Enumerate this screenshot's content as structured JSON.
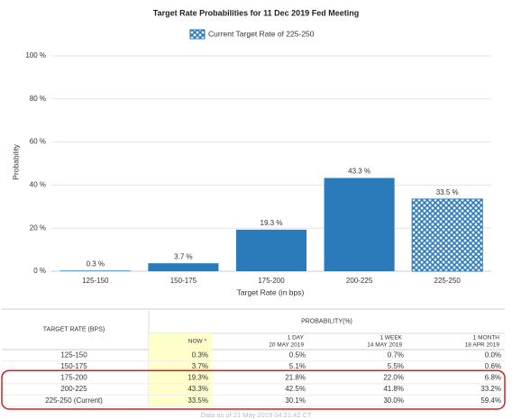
{
  "chart_data": {
    "type": "bar",
    "title": "Target Rate Probabilities for 11 Dec 2019 Fed Meeting",
    "legend": "Current Target Rate of 225-250",
    "ylabel": "Probability",
    "xlabel": "Target Rate (in bps)",
    "categories": [
      "125-150",
      "150-175",
      "175-200",
      "200-225",
      "225-250"
    ],
    "values": [
      0.3,
      3.7,
      19.3,
      43.3,
      33.5
    ],
    "value_labels": [
      "0.3 %",
      "3.7 %",
      "19.3 %",
      "43.3 %",
      "33.5 %"
    ],
    "hatched": [
      false,
      false,
      false,
      false,
      true
    ],
    "color": "#2b7bba",
    "grid": true,
    "ylim": [
      0,
      100
    ],
    "yticks": [
      {
        "value": 0,
        "label": "0 %"
      },
      {
        "value": 20,
        "label": "20 %"
      },
      {
        "value": 40,
        "label": "40 %"
      },
      {
        "value": 60,
        "label": "60 %"
      },
      {
        "value": 80,
        "label": "80 %"
      },
      {
        "value": 100,
        "label": "100 %"
      }
    ]
  },
  "table": {
    "corner": "TARGET RATE (BPS)",
    "group": "PROBABILITY(%)",
    "columns": [
      [
        "NOW *"
      ],
      [
        "1 DAY",
        "20 MAY 2019"
      ],
      [
        "1 WEEK",
        "14 MAY 2019"
      ],
      [
        "1 MONTH",
        "18 APR 2019"
      ]
    ],
    "rows": [
      [
        "125-150",
        "0.3%",
        "0.5%",
        "0.7%",
        "0.0%"
      ],
      [
        "150-175",
        "3.7%",
        "5.1%",
        "5.5%",
        "0.6%"
      ],
      [
        "175-200",
        "19.3%",
        "21.8%",
        "22.0%",
        "6.8%"
      ],
      [
        "200-225",
        "43.3%",
        "42.5%",
        "41.8%",
        "33.2%"
      ],
      [
        "225-250 (Current)",
        "33.5%",
        "30.1%",
        "30.0%",
        "59.4%"
      ]
    ],
    "footer": "Data as of 21 May 2019 04:21:42 CT"
  }
}
